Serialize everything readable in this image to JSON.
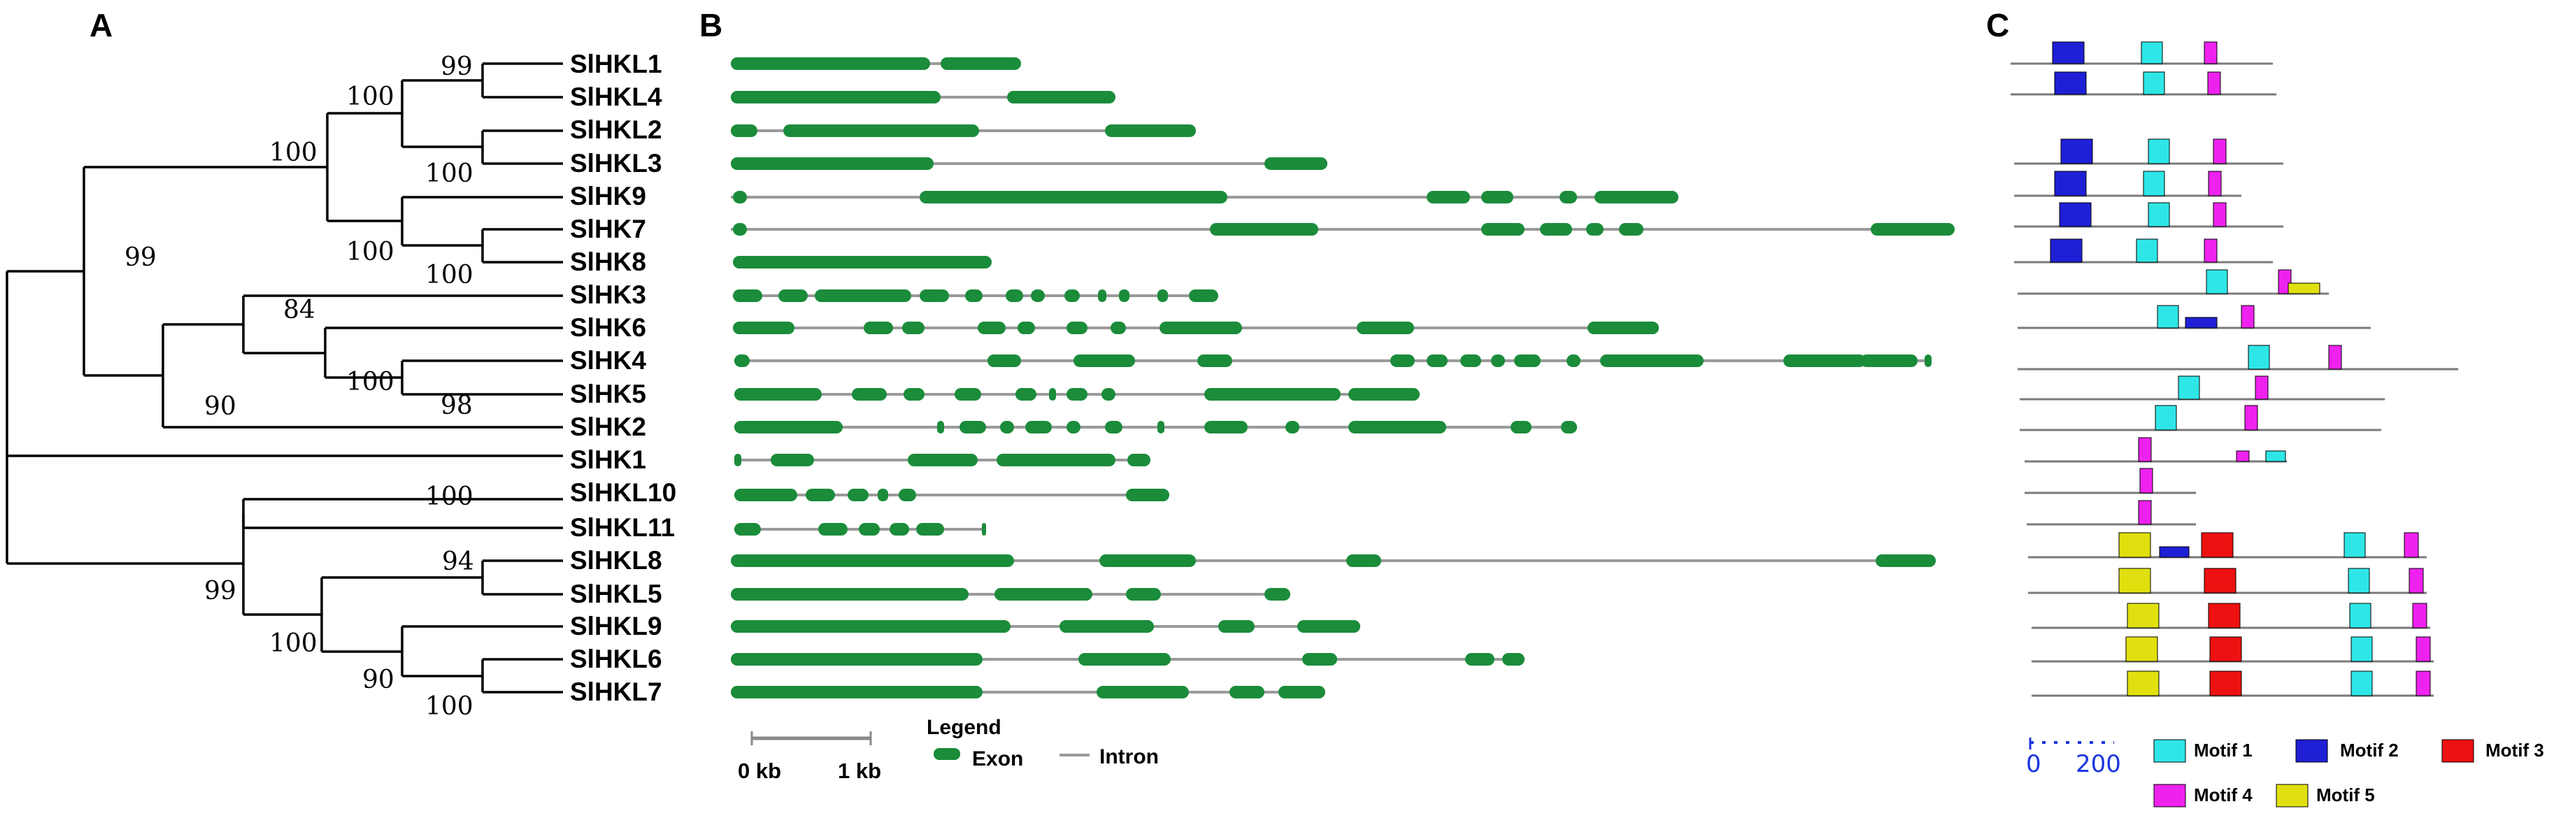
{
  "panels": {
    "a": "A",
    "b": "B",
    "c": "C"
  },
  "genes": [
    "SlHKL1",
    "SlHKL4",
    "SlHKL2",
    "SlHKL3",
    "SlHK9",
    "SlHK7",
    "SlHK8",
    "SlHK3",
    "SlHK6",
    "SlHK4",
    "SlHK5",
    "SlHK2",
    "SlHK1",
    "SlHKL10",
    "SlHKL11",
    "SlHKL8",
    "SlHKL5",
    "SlHKL9",
    "SlHKL6",
    "SlHKL7"
  ],
  "tree": {
    "bootstrap": [
      {
        "value": "99",
        "node": "hkl1_4"
      },
      {
        "value": "100",
        "node": "hkl1_4_2_3"
      },
      {
        "value": "100",
        "node": "hkl2_3"
      },
      {
        "value": "100",
        "node": "hkl_hk_top"
      },
      {
        "value": "100",
        "node": "hk9_7_8"
      },
      {
        "value": "100",
        "node": "hk7_8"
      },
      {
        "value": "99",
        "node": "big_clade"
      },
      {
        "value": "84",
        "node": "hk3_6_4_5"
      },
      {
        "value": "100",
        "node": "hk6_4_5"
      },
      {
        "value": "98",
        "node": "hk4_5"
      },
      {
        "value": "90",
        "node": "hk3_2"
      },
      {
        "value": "100",
        "node": "hkl10_11"
      },
      {
        "value": "99",
        "node": "hkl_lower"
      },
      {
        "value": "94",
        "node": "hkl8_5"
      },
      {
        "value": "100",
        "node": "hkl8_9_6_7"
      },
      {
        "value": "90",
        "node": "hkl9_6_7"
      },
      {
        "value": "100",
        "node": "hkl6_7"
      }
    ]
  },
  "gene_structure": {
    "legend_title": "Legend",
    "exon_label": "Exon",
    "intron_label": "Intron",
    "scale_start": "0 kb",
    "scale_end": "1 kb",
    "exon_color": "#1a8c3a",
    "intron_color": "#9a9a9a"
  },
  "motifs": {
    "scale_start": "0",
    "scale_end": "200",
    "legend": [
      {
        "name": "Motif 1",
        "color": "#2ee6e6"
      },
      {
        "name": "Motif 2",
        "color": "#1f1fd6"
      },
      {
        "name": "Motif 3",
        "color": "#ee1111"
      },
      {
        "name": "Motif 4",
        "color": "#ee22ee"
      },
      {
        "name": "Motif 5",
        "color": "#e0e010"
      }
    ]
  }
}
